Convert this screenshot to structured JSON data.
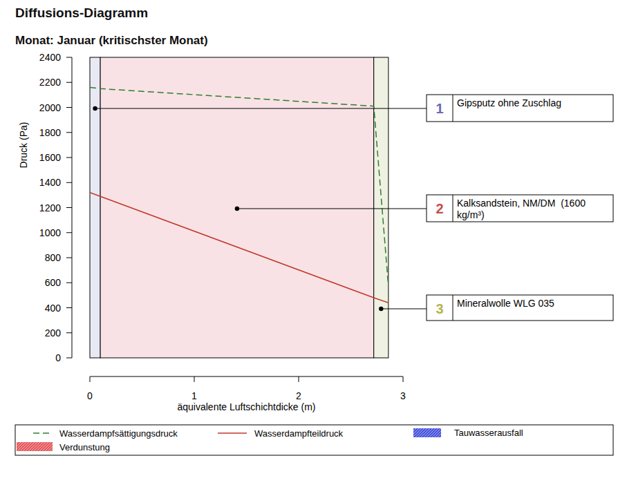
{
  "chart_data": {
    "type": "line",
    "title": "Diffusions-Diagramm",
    "subtitle": "Monat: Januar (kritischster Monat)",
    "x_label": "äquivalente Luftschichtdicke (m)",
    "y_label": "Druck (Pa)",
    "x": [
      0,
      0.1,
      2.72,
      2.86
    ],
    "series": [
      {
        "name": "Wasserdampfsättigungsdruck",
        "color": "#2e7d2e",
        "line_style": "dashed",
        "values": [
          2160,
          2150,
          2010,
          570
        ]
      },
      {
        "name": "Wasserdampfteildruck",
        "color": "#c0392b",
        "line_style": "solid",
        "values": [
          1320,
          1290,
          480,
          440
        ]
      }
    ],
    "areas": [
      {
        "name": "Tauwasserausfall",
        "color": "#2433d6"
      },
      {
        "name": "Verdunstung",
        "color": "#e0393e"
      }
    ],
    "layers": [
      {
        "number": 1,
        "name": "Gipsputz ohne Zuschlag",
        "start": 0,
        "end": 0.1,
        "color": "#e9e9f4",
        "number_color": "#6b6bb0"
      },
      {
        "number": 2,
        "name": "Kalksandstein, NM/DM  (1600 kg/m³)",
        "start": 0.1,
        "end": 2.72,
        "color": "#f9e2e5",
        "number_color": "#c0504d"
      },
      {
        "number": 3,
        "name": "Mineralwolle WLG 035",
        "start": 2.72,
        "end": 2.86,
        "color": "#eff1e2",
        "number_color": "#b5b552"
      }
    ],
    "xlim": [
      0,
      3
    ],
    "ylim": [
      0,
      2400
    ],
    "xticks": [
      0,
      1,
      2,
      3
    ],
    "yticks": [
      0,
      200,
      400,
      600,
      800,
      1000,
      1200,
      1400,
      1600,
      1800,
      2000,
      2200,
      2400
    ]
  }
}
